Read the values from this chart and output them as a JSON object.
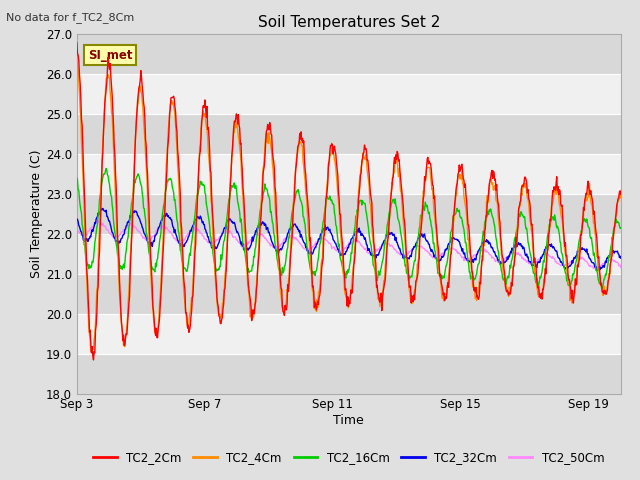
{
  "title": "Soil Temperatures Set 2",
  "subtitle": "No data for f_TC2_8Cm",
  "xlabel": "Time",
  "ylabel": "Soil Temperature (C)",
  "ylim": [
    18.0,
    27.0
  ],
  "yticks": [
    18.0,
    19.0,
    20.0,
    21.0,
    22.0,
    23.0,
    24.0,
    25.0,
    26.0,
    27.0
  ],
  "xtick_labels": [
    "Sep 3",
    "Sep 7",
    "Sep 11",
    "Sep 15",
    "Sep 19"
  ],
  "xtick_positions": [
    0,
    4,
    8,
    12,
    16
  ],
  "annotation_text": "SI_met",
  "series_colors": {
    "TC2_2Cm": "#FF0000",
    "TC2_4Cm": "#FF8C00",
    "TC2_16Cm": "#00CC00",
    "TC2_32Cm": "#0000EE",
    "TC2_50Cm": "#FF88FF"
  },
  "bg_color": "#E0E0E0",
  "plot_bg_light": "#F0F0F0",
  "plot_bg_dark": "#D8D8D8",
  "grid_color": "#FFFFFF",
  "n_days": 17,
  "n_points_per_day": 48
}
